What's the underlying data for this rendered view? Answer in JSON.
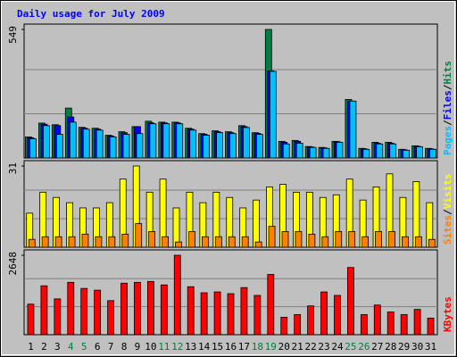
{
  "chart_data": [
    {
      "type": "bar",
      "title": "Daily usage for July 2009",
      "ylim": [
        0,
        549
      ],
      "yticks": [
        549
      ],
      "legend_separator": "/",
      "series": [
        {
          "name": "Pages",
          "color": "#00c0ff",
          "values": [
            82,
            138,
            101,
            153,
            123,
            119,
            90,
            101,
            104,
            146,
            146,
            146,
            119,
            97,
            108,
            104,
            130,
            101,
            370,
            60,
            63,
            45,
            41,
            67,
            243,
            37,
            60,
            60,
            33,
            48,
            37
          ]
        },
        {
          "name": "Files",
          "color": "#0000ff",
          "values": [
            86,
            144,
            138,
            175,
            127,
            123,
            94,
            108,
            134,
            150,
            150,
            150,
            123,
            101,
            112,
            108,
            134,
            105,
            372,
            67,
            71,
            47,
            43,
            69,
            243,
            39,
            63,
            63,
            35,
            50,
            39
          ]
        },
        {
          "name": "Hits",
          "color": "#008040",
          "values": [
            90,
            149,
            142,
            213,
            131,
            127,
            97,
            112,
            134,
            157,
            153,
            153,
            127,
            104,
            116,
            112,
            138,
            108,
            549,
            71,
            75,
            49,
            45,
            71,
            250,
            41,
            67,
            67,
            37,
            52,
            41
          ]
        }
      ]
    },
    {
      "type": "bar",
      "ylim": [
        0,
        31
      ],
      "yticks": [
        31
      ],
      "legend_separator": "/",
      "series": [
        {
          "name": "Sites",
          "color": "#ff8000",
          "values": [
            3,
            4,
            4,
            4,
            5,
            4,
            4,
            5,
            9,
            6,
            4,
            2,
            6,
            4,
            4,
            4,
            4,
            2,
            8,
            6,
            6,
            5,
            4,
            6,
            6,
            4,
            6,
            6,
            4,
            4,
            3
          ]
        },
        {
          "name": "Visits",
          "color": "#ffff00",
          "values": [
            13,
            21,
            19,
            17,
            15,
            15,
            17,
            26,
            31,
            21,
            26,
            15,
            21,
            17,
            21,
            19,
            15,
            18,
            23,
            24,
            21,
            21,
            19,
            20,
            26,
            18,
            23,
            28,
            19,
            25,
            17
          ]
        }
      ]
    },
    {
      "type": "bar",
      "ylim": [
        0,
        2648
      ],
      "yticks": [
        2648
      ],
      "categories": [
        "1",
        "2",
        "3",
        "4",
        "5",
        "6",
        "7",
        "8",
        "9",
        "10",
        "11",
        "12",
        "13",
        "14",
        "15",
        "16",
        "17",
        "18",
        "19",
        "20",
        "21",
        "22",
        "23",
        "24",
        "25",
        "26",
        "27",
        "28",
        "29",
        "30",
        "31"
      ],
      "category_colors": [
        "#000000",
        "#000000",
        "#000000",
        "#008040",
        "#008040",
        "#000000",
        "#000000",
        "#000000",
        "#000000",
        "#000000",
        "#008040",
        "#008040",
        "#000000",
        "#000000",
        "#000000",
        "#000000",
        "#000000",
        "#008040",
        "#008040",
        "#000000",
        "#000000",
        "#000000",
        "#000000",
        "#000000",
        "#008040",
        "#008040",
        "#000000",
        "#000000",
        "#000000",
        "#000000",
        "#000000"
      ],
      "series": [
        {
          "name": "KBytes",
          "color": "#ff0000",
          "values": [
            1018,
            1630,
            1193,
            1746,
            1542,
            1484,
            1135,
            1717,
            1746,
            1775,
            1659,
            2648,
            1600,
            1397,
            1426,
            1368,
            1571,
            1309,
            2008,
            582,
            669,
            960,
            1426,
            1309,
            2240,
            669,
            989,
            757,
            669,
            844,
            553
          ]
        }
      ]
    }
  ]
}
